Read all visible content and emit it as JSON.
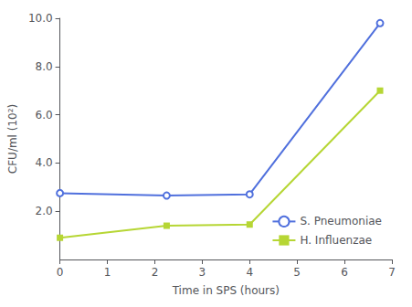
{
  "chart_data": {
    "type": "line",
    "xlabel": "Time in SPS (hours)",
    "ylabel": "CFU/ml (10²)",
    "series": [
      {
        "name": "S. Pneumoniae",
        "marker": "open_circle",
        "x": [
          0,
          2.25,
          4.0,
          6.75
        ],
        "values": [
          2.75,
          2.65,
          2.7,
          9.8
        ]
      },
      {
        "name": "H. Influenzae",
        "marker": "square",
        "x": [
          0,
          2.25,
          4.0,
          6.75
        ],
        "values": [
          0.9,
          1.4,
          1.45,
          7.0
        ]
      }
    ],
    "xlim": [
      0,
      7
    ],
    "xticks": [
      0,
      1,
      2,
      3,
      4,
      5,
      6,
      7
    ],
    "ylim": [
      0,
      10.0
    ],
    "yticks": [
      {
        "value": 2.0,
        "label": "2.0"
      },
      {
        "value": 4.0,
        "label": "4.0"
      },
      {
        "value": 6.0,
        "label": "6.0"
      },
      {
        "value": 8.0,
        "label": "8.0"
      },
      {
        "value": 10.0,
        "label": "10.0"
      }
    ],
    "grid": false,
    "legend": "lower right"
  }
}
